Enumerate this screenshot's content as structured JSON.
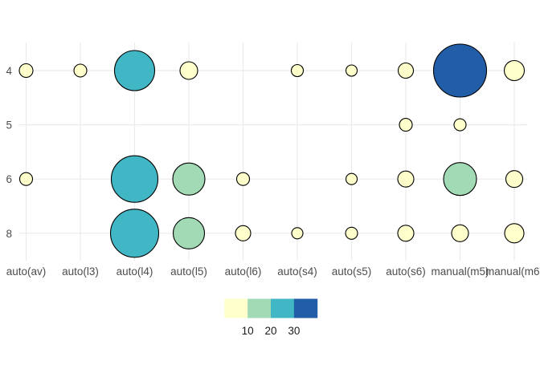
{
  "chart_data": {
    "type": "scatter",
    "subtype": "count-bubble",
    "title": "",
    "xlabel": "",
    "ylabel": "",
    "x_axis": {
      "categories": [
        "auto(av)",
        "auto(l3)",
        "auto(l4)",
        "auto(l5)",
        "auto(l6)",
        "auto(s4)",
        "auto(s5)",
        "auto(s6)",
        "manual(m5)",
        "manual(m6)"
      ]
    },
    "y_axis": {
      "tick_labels": [
        "4",
        "5",
        "6",
        "8"
      ]
    },
    "grid": true,
    "points": [
      {
        "trans": "auto(av)",
        "cyl": "4",
        "n": 3,
        "r": 8.5
      },
      {
        "trans": "auto(l3)",
        "cyl": "4",
        "n": 2,
        "r": 8
      },
      {
        "trans": "auto(l4)",
        "cyl": "4",
        "n": 23,
        "r": 25
      },
      {
        "trans": "auto(l5)",
        "cyl": "4",
        "n": 4,
        "r": 11
      },
      {
        "trans": "auto(s4)",
        "cyl": "4",
        "n": 2,
        "r": 7.5
      },
      {
        "trans": "auto(s5)",
        "cyl": "4",
        "n": 1,
        "r": 7
      },
      {
        "trans": "auto(s6)",
        "cyl": "4",
        "n": 4,
        "r": 9.5
      },
      {
        "trans": "manual(m5)",
        "cyl": "4",
        "n": 33,
        "r": 33
      },
      {
        "trans": "manual(m6)",
        "cyl": "4",
        "n": 7,
        "r": 12.5
      },
      {
        "trans": "auto(s6)",
        "cyl": "5",
        "n": 2,
        "r": 8
      },
      {
        "trans": "manual(m5)",
        "cyl": "5",
        "n": 2,
        "r": 7.5
      },
      {
        "trans": "auto(av)",
        "cyl": "6",
        "n": 2,
        "r": 8
      },
      {
        "trans": "auto(l4)",
        "cyl": "6",
        "n": 30,
        "r": 29
      },
      {
        "trans": "auto(l5)",
        "cyl": "6",
        "n": 15,
        "r": 20
      },
      {
        "trans": "auto(l6)",
        "cyl": "6",
        "n": 2,
        "r": 8
      },
      {
        "trans": "auto(s5)",
        "cyl": "6",
        "n": 1,
        "r": 7
      },
      {
        "trans": "auto(s6)",
        "cyl": "6",
        "n": 5,
        "r": 10
      },
      {
        "trans": "manual(m5)",
        "cyl": "6",
        "n": 15,
        "r": 20.5
      },
      {
        "trans": "manual(m6)",
        "cyl": "6",
        "n": 5,
        "r": 10.5
      },
      {
        "trans": "auto(l4)",
        "cyl": "8",
        "n": 30,
        "r": 30
      },
      {
        "trans": "auto(l5)",
        "cyl": "8",
        "n": 20,
        "r": 19.5
      },
      {
        "trans": "auto(l6)",
        "cyl": "8",
        "n": 4,
        "r": 9.5
      },
      {
        "trans": "auto(s4)",
        "cyl": "8",
        "n": 1,
        "r": 7
      },
      {
        "trans": "auto(s5)",
        "cyl": "8",
        "n": 1,
        "r": 7.5
      },
      {
        "trans": "auto(s6)",
        "cyl": "8",
        "n": 5,
        "r": 10
      },
      {
        "trans": "manual(m5)",
        "cyl": "8",
        "n": 8,
        "r": 10.5
      },
      {
        "trans": "manual(m6)",
        "cyl": "8",
        "n": 6,
        "r": 12
      }
    ],
    "legend": {
      "position": "bottom-center",
      "break_labels": [
        "10",
        "20",
        "30"
      ],
      "breaks": [
        10,
        20,
        30
      ],
      "bin_colors": [
        "#FFFFCC",
        "#A1DAB4",
        "#41B6C4",
        "#225EA8"
      ]
    },
    "colors": {
      "background": "#FFFFFF",
      "gridline": "#EBEBEB",
      "axis_text": "#4D4D4D",
      "legend_text": "#1A1A1A",
      "bubble_stroke": "#000000"
    }
  }
}
